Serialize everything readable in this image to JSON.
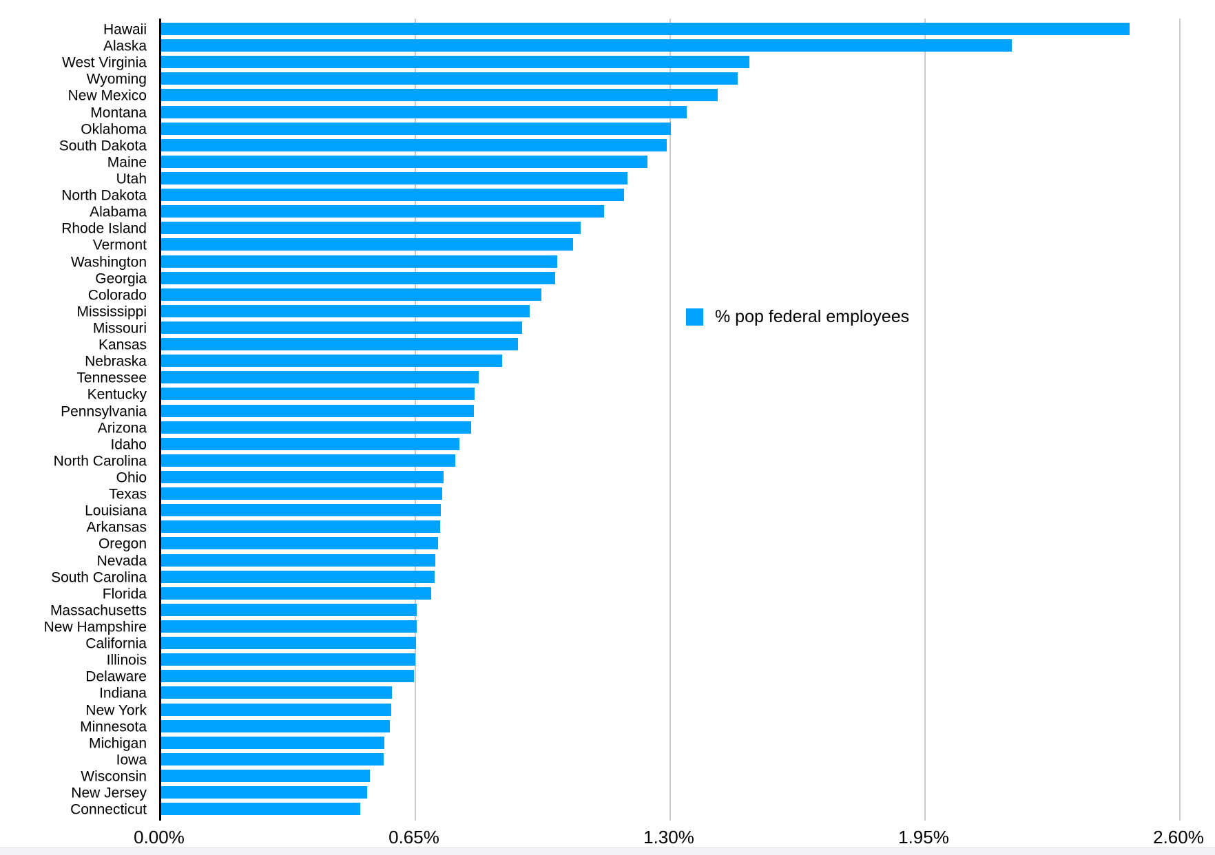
{
  "chart_data": {
    "type": "bar",
    "orientation": "horizontal",
    "title": "",
    "xlabel": "",
    "ylabel": "",
    "legend": {
      "label": "% pop federal employees",
      "position": "center-right"
    },
    "x_ticks": [
      "0.00%",
      "0.65%",
      "1.30%",
      "1.95%",
      "2.60%"
    ],
    "xlim": [
      0,
      2.6
    ],
    "grid": "vertical-gridlines-at-ticks",
    "categories": [
      "Hawaii",
      "Alaska",
      "West Virginia",
      "Wyoming",
      "New Mexico",
      "Montana",
      "Oklahoma",
      "South Dakota",
      "Maine",
      "Utah",
      "North Dakota",
      "Alabama",
      "Rhode Island",
      "Vermont",
      "Washington",
      "Georgia",
      "Colorado",
      "Mississippi",
      "Missouri",
      "Kansas",
      "Nebraska",
      "Tennessee",
      "Kentucky",
      "Pennsylvania",
      "Arizona",
      "Idaho",
      "North Carolina",
      "Ohio",
      "Texas",
      "Louisiana",
      "Arkansas",
      "Oregon",
      "Nevada",
      "South Carolina",
      "Florida",
      "Massachusetts",
      "New Hampshire",
      "California",
      "Illinois",
      "Delaware",
      "Indiana",
      "New York",
      "Minnesota",
      "Michigan",
      "Iowa",
      "Wisconsin",
      "New Jersey",
      "Connecticut"
    ],
    "values": [
      2.47,
      2.17,
      1.5,
      1.47,
      1.42,
      1.34,
      1.3,
      1.29,
      1.24,
      1.19,
      1.18,
      1.13,
      1.07,
      1.05,
      1.01,
      1.005,
      0.97,
      0.94,
      0.92,
      0.91,
      0.87,
      0.81,
      0.8,
      0.797,
      0.79,
      0.76,
      0.75,
      0.72,
      0.717,
      0.713,
      0.711,
      0.707,
      0.7,
      0.697,
      0.689,
      0.652,
      0.651,
      0.65,
      0.649,
      0.645,
      0.589,
      0.587,
      0.584,
      0.569,
      0.567,
      0.532,
      0.525,
      0.508
    ],
    "series_unit": "percent_of_population"
  },
  "colors": {
    "bar": "#00A2FF",
    "gridline": "#cacacc",
    "axis_spine": "#000000",
    "text": "#000000",
    "background": "#ffffff"
  }
}
